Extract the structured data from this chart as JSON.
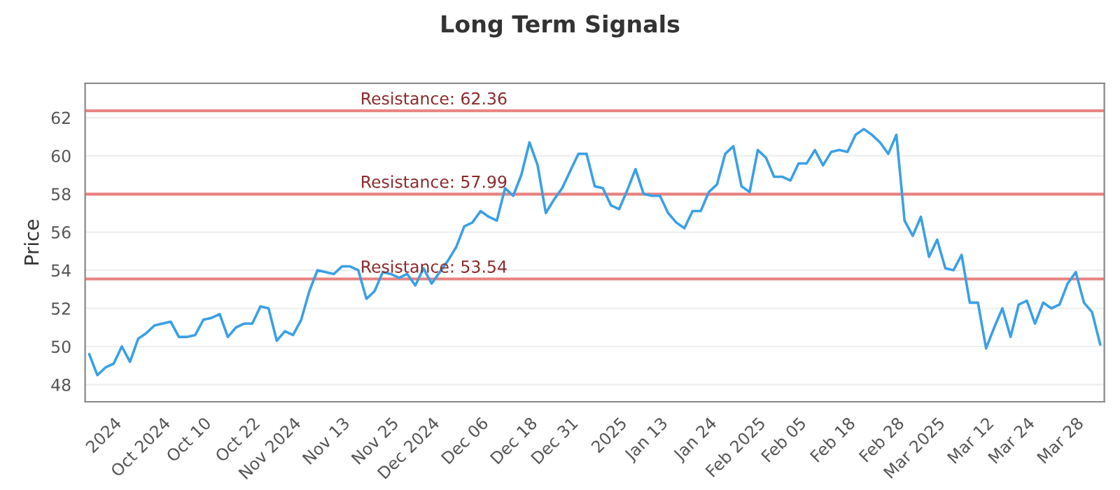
{
  "chart_data": {
    "type": "line",
    "title": "Long Term Signals",
    "ylabel": "Price",
    "categories": [
      null,
      null,
      null,
      "2024",
      null,
      null,
      null,
      null,
      null,
      "Oct 2024",
      null,
      null,
      null,
      null,
      "Oct 10",
      null,
      null,
      null,
      null,
      null,
      "Oct 22",
      null,
      null,
      null,
      null,
      "Nov 2024",
      null,
      null,
      null,
      null,
      null,
      "Nov 13",
      null,
      null,
      null,
      null,
      null,
      "Nov 25",
      null,
      null,
      null,
      null,
      "Dec 2024",
      null,
      null,
      null,
      null,
      null,
      "Dec 06",
      null,
      null,
      null,
      null,
      null,
      "Dec 18",
      null,
      null,
      null,
      null,
      "Dec 31",
      null,
      null,
      null,
      null,
      null,
      "2025",
      null,
      null,
      null,
      null,
      "Jan 13",
      null,
      null,
      null,
      null,
      null,
      "Jan 24",
      null,
      null,
      null,
      null,
      null,
      "Feb 2025",
      null,
      null,
      null,
      null,
      "Feb 05",
      null,
      null,
      null,
      null,
      null,
      "Feb 18",
      null,
      null,
      null,
      null,
      null,
      "Feb 28",
      null,
      null,
      null,
      null,
      "Mar 2025",
      null,
      null,
      null,
      null,
      null,
      "Mar 12",
      null,
      null,
      null,
      null,
      "Mar 24",
      null,
      null,
      null,
      null,
      null,
      "Mar 28",
      null,
      null,
      null
    ],
    "series": [
      {
        "color": "#3aa0e6",
        "values": [
          49.6,
          48.5,
          48.9,
          49.1,
          50.0,
          49.2,
          50.4,
          50.7,
          51.1,
          51.2,
          51.3,
          50.5,
          50.5,
          50.6,
          51.4,
          51.5,
          51.7,
          50.5,
          51.0,
          51.2,
          51.2,
          52.1,
          52.0,
          50.3,
          50.8,
          50.6,
          51.4,
          52.9,
          54.0,
          53.9,
          53.8,
          54.2,
          54.2,
          54.0,
          52.5,
          52.9,
          53.9,
          53.8,
          53.6,
          53.8,
          53.2,
          54.1,
          53.3,
          53.9,
          54.5,
          55.2,
          56.3,
          56.5,
          57.1,
          56.8,
          56.6,
          58.3,
          57.9,
          59.0,
          60.7,
          59.5,
          57.0,
          57.7,
          58.3,
          59.2,
          60.1,
          60.1,
          58.4,
          58.3,
          57.4,
          57.2,
          58.2,
          59.3,
          58.0,
          57.9,
          57.9,
          57.0,
          56.5,
          56.2,
          57.1,
          57.1,
          58.1,
          58.5,
          60.1,
          60.5,
          58.4,
          58.1,
          60.3,
          59.9,
          58.9,
          58.9,
          58.7,
          59.6,
          59.6,
          60.3,
          59.5,
          60.2,
          60.3,
          60.2,
          61.1,
          61.4,
          61.1,
          60.7,
          60.1,
          61.1,
          56.6,
          55.8,
          56.8,
          54.7,
          55.6,
          54.1,
          54.0,
          54.8,
          52.3,
          52.3,
          49.9,
          51.0,
          52.0,
          50.5,
          52.2,
          52.4,
          51.2,
          52.3,
          52.0,
          52.2,
          53.3,
          53.9,
          52.3,
          51.8,
          50.1
        ]
      }
    ],
    "ylim": [
      47.1,
      63.8
    ],
    "yticks": [
      48,
      50,
      52,
      54,
      56,
      58,
      60,
      62
    ],
    "grid": "y",
    "marker": "none",
    "line_style": "solid",
    "ref_lines": [
      {
        "axis": "y",
        "value": 62.36,
        "label": "Resistance: 62.36",
        "color": "#e8827f"
      },
      {
        "axis": "y",
        "value": 57.99,
        "label": "Resistance: 57.99",
        "color": "#e8827f"
      },
      {
        "axis": "y",
        "value": 53.54,
        "label": "Resistance: 53.54",
        "color": "#e8827f"
      }
    ]
  }
}
